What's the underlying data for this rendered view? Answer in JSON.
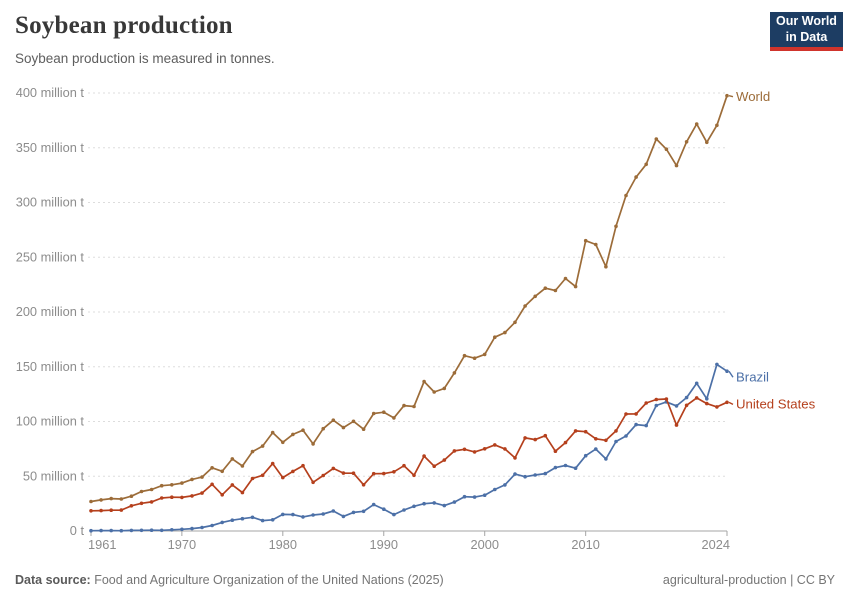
{
  "header": {
    "title": "Soybean production",
    "subtitle": "Soybean production is measured in tonnes.",
    "logo": {
      "line1": "Our World",
      "line2": "in Data",
      "bg_color": "#1d3d63",
      "accent_color": "#d0342c"
    }
  },
  "footer": {
    "source_label": "Data source:",
    "source_text": " Food and Agriculture Organization of the United Nations (2025)",
    "note": "agricultural-production | CC BY"
  },
  "chart_data": {
    "type": "line",
    "title": "Soybean production",
    "subtitle": "Soybean production is measured in tonnes.",
    "unit": "tonnes",
    "ylim": [
      0,
      400
    ],
    "grid": "horizontal-dashed",
    "legend_position": "right-end-labels",
    "markers": "dots-every-year",
    "x": [
      1961,
      1962,
      1963,
      1964,
      1965,
      1966,
      1967,
      1968,
      1969,
      1970,
      1971,
      1972,
      1973,
      1974,
      1975,
      1976,
      1977,
      1978,
      1979,
      1980,
      1981,
      1982,
      1983,
      1984,
      1985,
      1986,
      1987,
      1988,
      1989,
      1990,
      1991,
      1992,
      1993,
      1994,
      1995,
      1996,
      1997,
      1998,
      1999,
      2000,
      2001,
      2002,
      2003,
      2004,
      2005,
      2006,
      2007,
      2008,
      2009,
      2010,
      2011,
      2012,
      2013,
      2014,
      2015,
      2016,
      2017,
      2018,
      2019,
      2020,
      2021,
      2022,
      2023,
      2024
    ],
    "x_tick_years": [
      1961,
      1970,
      1980,
      1990,
      2000,
      2010,
      2024
    ],
    "y_ticks": [
      {
        "value": 0,
        "label": "0 t"
      },
      {
        "value": 50,
        "label": "50 million t"
      },
      {
        "value": 100,
        "label": "100 million t"
      },
      {
        "value": 150,
        "label": "150 million t"
      },
      {
        "value": 200,
        "label": "200 million t"
      },
      {
        "value": 250,
        "label": "250 million t"
      },
      {
        "value": 300,
        "label": "300 million t"
      },
      {
        "value": 350,
        "label": "350 million t"
      },
      {
        "value": 400,
        "label": "400 million t"
      }
    ],
    "y_tick_unit_values_million_t": true,
    "series": [
      {
        "name": "World",
        "color": "#9C6C39",
        "values": [
          26.9,
          28.4,
          29.6,
          29.2,
          31.8,
          36.1,
          37.9,
          41.4,
          42.2,
          43.7,
          47.1,
          49.2,
          57.7,
          54.5,
          65.8,
          59.4,
          72.5,
          77.5,
          89.9,
          81.0,
          88.2,
          92.1,
          79.5,
          93.4,
          101.2,
          94.4,
          100.2,
          93.0,
          107.3,
          108.5,
          103.3,
          114.5,
          113.7,
          136.5,
          126.9,
          130.2,
          144.4,
          160.1,
          157.8,
          161.3,
          177.0,
          181.2,
          190.6,
          205.5,
          214.3,
          221.7,
          219.6,
          230.6,
          223.2,
          265.1,
          261.6,
          241.4,
          278.3,
          306.4,
          323.2,
          334.9,
          358.0,
          348.7,
          333.7,
          355.4,
          371.7,
          355.0,
          370.5,
          397.5
        ]
      },
      {
        "name": "Brazil",
        "color": "#4C70A7",
        "values": [
          0.27,
          0.35,
          0.32,
          0.3,
          0.52,
          0.6,
          0.72,
          0.65,
          1.06,
          1.51,
          2.22,
          3.22,
          5.01,
          7.88,
          9.89,
          11.23,
          12.51,
          9.54,
          10.24,
          15.16,
          15.01,
          12.84,
          14.58,
          15.54,
          18.28,
          13.33,
          16.97,
          18.02,
          24.07,
          19.9,
          14.94,
          19.21,
          22.59,
          24.93,
          25.68,
          23.17,
          26.43,
          31.31,
          30.99,
          32.73,
          37.91,
          42.11,
          51.92,
          49.55,
          51.18,
          52.46,
          57.86,
          59.83,
          57.35,
          68.76,
          74.82,
          65.85,
          81.72,
          86.76,
          97.21,
          96.3,
          114.6,
          117.89,
          114.27,
          121.8,
          134.93,
          120.7,
          152.14,
          145.9
        ]
      },
      {
        "name": "United States",
        "color": "#B5401D",
        "values": [
          18.47,
          18.6,
          19.03,
          19.08,
          23.01,
          25.27,
          26.58,
          30.13,
          30.84,
          30.68,
          32.01,
          34.58,
          42.63,
          33.1,
          42.14,
          35.07,
          47.95,
          50.86,
          61.53,
          48.77,
          54.44,
          59.61,
          44.52,
          50.65,
          57.13,
          52.87,
          52.74,
          42.15,
          52.35,
          52.42,
          54.07,
          59.61,
          50.89,
          68.44,
          59.17,
          64.78,
          73.18,
          74.6,
          72.22,
          75.06,
          78.67,
          75.01,
          66.78,
          85.01,
          83.51,
          87.0,
          72.86,
          80.75,
          91.42,
          90.66,
          84.19,
          82.79,
          91.39,
          106.88,
          106.95,
          116.93,
          120.07,
          120.51,
          96.67,
          114.75,
          121.53,
          116.38,
          113.34,
          117.5
        ]
      }
    ],
    "axis_colors": {
      "grid": "#dddddd",
      "axis_line": "#a5a5a5",
      "tick_label": "#8c8c8c"
    }
  }
}
